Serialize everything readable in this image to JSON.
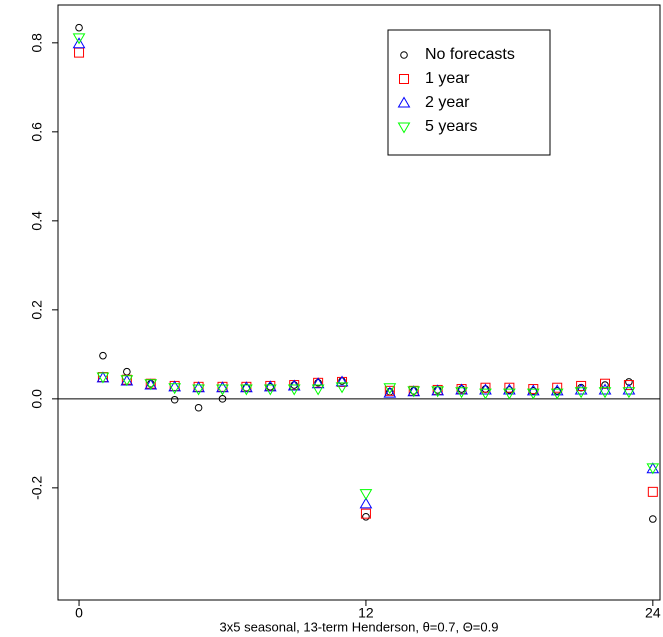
{
  "chart_data": {
    "type": "scatter",
    "xlabel": "3x5 seasonal, 13-term Henderson, θ=0.7, Θ=0.9",
    "x": [
      0,
      1,
      2,
      3,
      4,
      5,
      6,
      7,
      8,
      9,
      10,
      11,
      12,
      13,
      14,
      15,
      16,
      17,
      18,
      19,
      20,
      21,
      22,
      23,
      24
    ],
    "series": [
      {
        "name": "No forecasts",
        "color": "#000000",
        "marker": "circle",
        "values": [
          0.834,
          0.097,
          0.061,
          0.034,
          -0.002,
          -0.02,
          0.0,
          0.025,
          0.027,
          0.031,
          0.036,
          0.04,
          -0.265,
          0.016,
          0.018,
          0.02,
          0.022,
          0.022,
          0.02,
          0.018,
          0.018,
          0.025,
          0.031,
          0.038,
          -0.27
        ]
      },
      {
        "name": "1 year",
        "color": "#ff0000",
        "marker": "square",
        "values": [
          0.778,
          0.049,
          0.043,
          0.034,
          0.029,
          0.027,
          0.027,
          0.027,
          0.029,
          0.031,
          0.036,
          0.038,
          -0.258,
          0.018,
          0.018,
          0.02,
          0.022,
          0.025,
          0.025,
          0.022,
          0.025,
          0.029,
          0.034,
          0.031,
          -0.209
        ]
      },
      {
        "name": "2 year",
        "color": "#0000ff",
        "marker": "triangle-up",
        "values": [
          0.798,
          0.047,
          0.04,
          0.031,
          0.027,
          0.025,
          0.025,
          0.025,
          0.027,
          0.029,
          0.034,
          0.038,
          -0.236,
          0.013,
          0.016,
          0.018,
          0.02,
          0.02,
          0.02,
          0.018,
          0.018,
          0.02,
          0.02,
          0.02,
          -0.157
        ]
      },
      {
        "name": "5 years",
        "color": "#00ff00",
        "marker": "triangle-down",
        "values": [
          0.811,
          0.049,
          0.043,
          0.034,
          0.025,
          0.022,
          0.022,
          0.022,
          0.022,
          0.022,
          0.022,
          0.027,
          -0.213,
          0.025,
          0.018,
          0.018,
          0.016,
          0.013,
          0.013,
          0.013,
          0.013,
          0.016,
          0.016,
          0.016,
          -0.155
        ]
      }
    ],
    "xlim": [
      -0.88,
      24.3
    ],
    "ylim": [
      -0.452,
      0.885
    ],
    "xticks": [
      0,
      12,
      24
    ],
    "yticks": [
      -0.2,
      {
        "value": 0,
        "label": "0.0"
      },
      0.2,
      0.4,
      0.6,
      0.8
    ],
    "hline": 0,
    "legend": "top-right"
  }
}
